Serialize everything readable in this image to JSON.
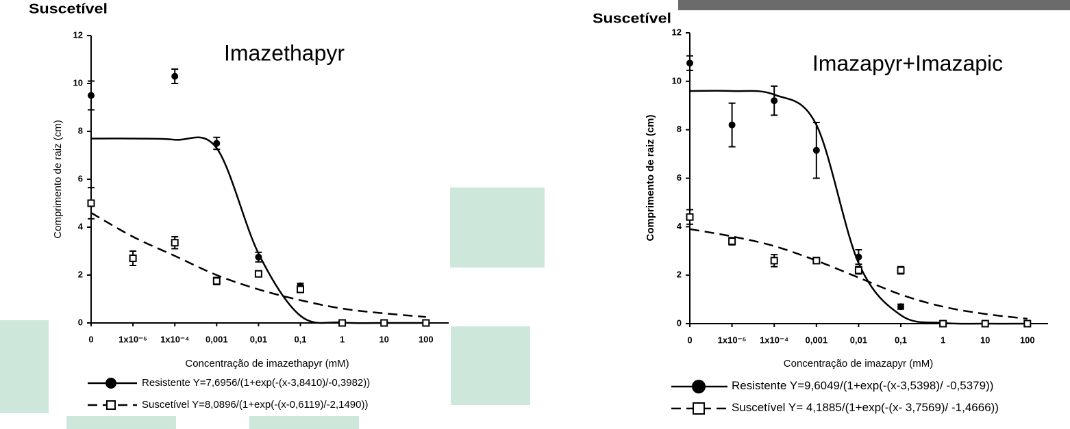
{
  "chart_data": [
    {
      "type": "scatter",
      "header": "Suscetível",
      "title": "Imazethapyr",
      "x_label": "Concentração de imazethapyr (mM)",
      "y_label": "Comprimento de raiz (cm)",
      "categories": [
        "0",
        "1x10⁻⁵",
        "1x10⁻⁴",
        "0,001",
        "0,01",
        "0,1",
        "1",
        "10",
        "100"
      ],
      "ylim": [
        0,
        12
      ],
      "yticks": [
        0,
        2,
        4,
        6,
        8,
        10,
        12
      ],
      "series": [
        {
          "name": "Resistente",
          "equation": "Y=7,6956/(1+exp(-(x-3,8410)/-0,3982))",
          "color": "#000000",
          "marker": "circle",
          "line_style": "solid",
          "values": [
            9.5,
            null,
            10.3,
            7.5,
            2.75,
            1.55,
            null,
            null,
            null
          ],
          "errors": [
            0.6,
            null,
            0.3,
            0.25,
            0.2,
            0.1,
            null,
            null,
            null
          ],
          "fit_values": [
            7.7,
            7.7,
            7.65,
            7.3,
            2.9,
            0.3,
            0.02,
            0,
            0
          ]
        },
        {
          "name": "Suscetível",
          "equation": "Y=8,0896/(1+exp(-(x-0,6119)/-2,1490))",
          "color": "#000000",
          "marker": "square",
          "line_style": "dashed",
          "values": [
            5.0,
            2.7,
            3.35,
            1.75,
            2.05,
            1.4,
            0,
            0,
            0
          ],
          "errors": [
            0.65,
            0.3,
            0.25,
            0.15,
            0.1,
            0.1,
            0,
            0,
            0
          ],
          "fit_values": [
            4.6,
            3.6,
            2.8,
            2.0,
            1.4,
            0.95,
            0.6,
            0.4,
            0.25
          ]
        }
      ]
    },
    {
      "type": "scatter",
      "header": "Suscetível",
      "title": "Imazapyr+Imazapic",
      "x_label": "Concentração de imazapyr (mM)",
      "y_label": "Comprimento de raiz (cm)",
      "categories": [
        "0",
        "1x10⁻⁵",
        "1x10⁻⁴",
        "0,001",
        "0,01",
        "0,1",
        "1",
        "10",
        "100"
      ],
      "ylim": [
        0,
        12
      ],
      "yticks": [
        0,
        2,
        4,
        6,
        8,
        10,
        12
      ],
      "series": [
        {
          "name": "Resistente",
          "equation": "Y=9,6049/(1+exp(-(x-3,5398)/ -0,5379))",
          "color": "#000000",
          "marker": "circle",
          "line_style": "solid",
          "values": [
            10.75,
            8.2,
            9.2,
            7.15,
            2.75,
            0.7,
            null,
            null,
            null
          ],
          "errors": [
            0.3,
            0.9,
            0.6,
            1.15,
            0.3,
            0.1,
            null,
            null,
            null
          ],
          "fit_values": [
            9.6,
            9.6,
            9.45,
            8.2,
            2.5,
            0.35,
            0.03,
            0,
            0
          ]
        },
        {
          "name": "Suscetível",
          "equation": "Y= 4,1885/(1+exp(-(x- 3,7569)/ -1,4666))",
          "color": "#000000",
          "marker": "square",
          "line_style": "dashed",
          "values": [
            4.4,
            3.4,
            2.6,
            2.6,
            2.2,
            2.2,
            0,
            0,
            0
          ],
          "errors": [
            0.3,
            0.15,
            0.25,
            0.1,
            0.15,
            0.15,
            0,
            0,
            0
          ],
          "fit_values": [
            3.9,
            3.6,
            3.2,
            2.6,
            1.9,
            1.2,
            0.7,
            0.4,
            0.2
          ]
        }
      ]
    }
  ]
}
